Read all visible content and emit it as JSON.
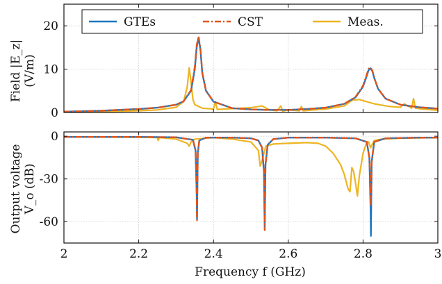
{
  "colors": {
    "gtes": "#1f77c0",
    "cst": "#e0541c",
    "meas": "#eeb422",
    "grid": "#c8c8c8",
    "axis": "#111111"
  },
  "chart_data": [
    {
      "type": "line",
      "title": "",
      "ylabel_line1": "Field |E_z|",
      "ylabel_line2": "(V/m)",
      "xlim": [
        2,
        3
      ],
      "ylim": [
        0,
        25
      ],
      "yticks": [
        0,
        10,
        20
      ],
      "ytick_labels": [
        "0",
        "10",
        "20"
      ],
      "xticks": [
        2,
        2.2,
        2.4,
        2.6,
        2.8,
        3
      ],
      "grid": true,
      "legend_position": "top",
      "series": [
        {
          "name": "GTEs",
          "color_key": "gtes",
          "style": "solid",
          "x": [
            2.0,
            2.1,
            2.2,
            2.25,
            2.3,
            2.32,
            2.34,
            2.35,
            2.355,
            2.36,
            2.365,
            2.37,
            2.38,
            2.4,
            2.45,
            2.5,
            2.55,
            2.6,
            2.65,
            2.7,
            2.75,
            2.78,
            2.8,
            2.81,
            2.815,
            2.82,
            2.825,
            2.83,
            2.84,
            2.86,
            2.9,
            2.95,
            3.0
          ],
          "y": [
            0.2,
            0.4,
            0.8,
            1.1,
            1.8,
            2.6,
            5.0,
            10.0,
            15.0,
            17.2,
            14.5,
            9.0,
            5.0,
            2.5,
            1.0,
            0.7,
            0.6,
            0.6,
            0.8,
            1.1,
            2.0,
            3.5,
            6.0,
            8.5,
            9.8,
            10.2,
            9.5,
            8.0,
            5.5,
            3.2,
            1.8,
            1.2,
            0.9
          ]
        },
        {
          "name": "CST",
          "color_key": "cst",
          "style": "dashdot",
          "x": [
            2.0,
            2.1,
            2.2,
            2.25,
            2.3,
            2.32,
            2.34,
            2.35,
            2.355,
            2.36,
            2.365,
            2.37,
            2.38,
            2.4,
            2.45,
            2.5,
            2.55,
            2.6,
            2.65,
            2.7,
            2.75,
            2.78,
            2.8,
            2.81,
            2.815,
            2.82,
            2.825,
            2.83,
            2.84,
            2.86,
            2.9,
            2.95,
            3.0
          ],
          "y": [
            0.2,
            0.4,
            0.8,
            1.1,
            1.8,
            2.6,
            5.2,
            10.5,
            15.5,
            17.6,
            14.8,
            9.2,
            5.1,
            2.5,
            1.0,
            0.7,
            0.6,
            0.6,
            0.8,
            1.1,
            2.0,
            3.6,
            6.2,
            8.8,
            10.1,
            10.4,
            9.6,
            8.0,
            5.5,
            3.2,
            1.8,
            1.2,
            0.9
          ]
        },
        {
          "name": "Meas.",
          "color_key": "meas",
          "style": "solid",
          "x": [
            2.0,
            2.1,
            2.2,
            2.25,
            2.3,
            2.32,
            2.33,
            2.335,
            2.34,
            2.345,
            2.35,
            2.37,
            2.4,
            2.405,
            2.41,
            2.45,
            2.5,
            2.53,
            2.55,
            2.57,
            2.58,
            2.585,
            2.6,
            2.63,
            2.635,
            2.64,
            2.7,
            2.75,
            2.77,
            2.79,
            2.81,
            2.83,
            2.85,
            2.87,
            2.9,
            2.91,
            2.93,
            2.935,
            2.94,
            2.96,
            3.0
          ],
          "y": [
            0.1,
            0.2,
            0.4,
            0.6,
            1.2,
            2.5,
            6.0,
            10.3,
            7.0,
            3.0,
            1.8,
            1.0,
            0.8,
            2.5,
            0.7,
            0.9,
            1.1,
            1.5,
            0.6,
            0.4,
            1.5,
            0.3,
            0.6,
            0.4,
            1.4,
            0.4,
            0.8,
            1.5,
            2.8,
            3.0,
            2.5,
            2.0,
            1.7,
            1.4,
            1.2,
            2.0,
            1.0,
            3.2,
            1.0,
            0.8,
            0.5
          ]
        }
      ]
    },
    {
      "type": "line",
      "title": "",
      "ylabel_line1": "Output voltage",
      "ylabel_line2": "V_o (dB)",
      "xlabel": "Frequency f (GHz)",
      "xlim": [
        2,
        3
      ],
      "ylim": [
        -75,
        3
      ],
      "yticks": [
        0,
        -30,
        -60
      ],
      "ytick_labels": [
        "0",
        "-30",
        "-60"
      ],
      "xticks": [
        2,
        2.2,
        2.4,
        2.6,
        2.8,
        3
      ],
      "xtick_labels": [
        "2",
        "2.2",
        "2.4",
        "2.6",
        "2.8",
        "3"
      ],
      "grid": true,
      "series": [
        {
          "name": "GTEs",
          "color_key": "gtes",
          "style": "solid",
          "x": [
            2.0,
            2.2,
            2.3,
            2.345,
            2.352,
            2.355,
            2.356,
            2.358,
            2.362,
            2.38,
            2.45,
            2.5,
            2.52,
            2.53,
            2.535,
            2.537,
            2.539,
            2.545,
            2.56,
            2.6,
            2.7,
            2.78,
            2.81,
            2.817,
            2.82,
            2.821,
            2.823,
            2.83,
            2.86,
            2.95,
            3.0
          ],
          "y": [
            -0.5,
            -0.5,
            -0.8,
            -2.5,
            -10,
            -40,
            -58,
            -12,
            -3,
            -1,
            -1,
            -1.5,
            -3,
            -8,
            -25,
            -65,
            -20,
            -6,
            -2,
            -1,
            -1,
            -1.5,
            -4,
            -15,
            -50,
            -70,
            -18,
            -4,
            -1.5,
            -1,
            -1
          ]
        },
        {
          "name": "CST",
          "color_key": "cst",
          "style": "dashdot",
          "x": [
            2.0,
            2.2,
            2.3,
            2.345,
            2.352,
            2.355,
            2.356,
            2.358,
            2.362,
            2.38,
            2.45,
            2.5,
            2.52,
            2.53,
            2.535,
            2.537,
            2.539,
            2.545,
            2.56,
            2.6,
            2.7,
            2.78,
            2.81,
            2.817,
            2.82,
            2.821,
            2.823,
            2.83,
            2.86,
            2.95,
            3.0
          ],
          "y": [
            -0.5,
            -0.5,
            -0.8,
            -2.5,
            -10,
            -40,
            -59,
            -12,
            -3,
            -1,
            -1,
            -1.5,
            -3,
            -8,
            -25,
            -66,
            -20,
            -6,
            -2,
            -1,
            -1,
            -1.5,
            -4,
            -15,
            -40,
            -49,
            -18,
            -4,
            -1.5,
            -1,
            -1
          ]
        },
        {
          "name": "Meas.",
          "color_key": "meas",
          "style": "solid",
          "x": [
            2.0,
            2.2,
            2.25,
            2.252,
            2.255,
            2.3,
            2.33,
            2.335,
            2.34,
            2.35,
            2.4,
            2.45,
            2.5,
            2.52,
            2.525,
            2.53,
            2.535,
            2.54,
            2.56,
            2.6,
            2.65,
            2.68,
            2.7,
            2.72,
            2.74,
            2.75,
            2.76,
            2.765,
            2.77,
            2.775,
            2.78,
            2.785,
            2.79,
            2.8,
            2.81,
            2.815,
            2.82,
            2.83,
            2.85,
            2.9,
            3.0
          ],
          "y": [
            -0.5,
            -0.8,
            -1,
            -3,
            -1,
            -2,
            -5,
            -7,
            -4,
            -2,
            -1,
            -2,
            -4,
            -10,
            -21,
            -17,
            -12,
            -7,
            -5.5,
            -5,
            -4.5,
            -5,
            -7,
            -12,
            -20,
            -27,
            -37,
            -39,
            -22,
            -25,
            -33,
            -42,
            -28,
            -12,
            -4,
            -4,
            -8,
            -3,
            -2,
            -1.5,
            -1
          ]
        }
      ]
    }
  ]
}
